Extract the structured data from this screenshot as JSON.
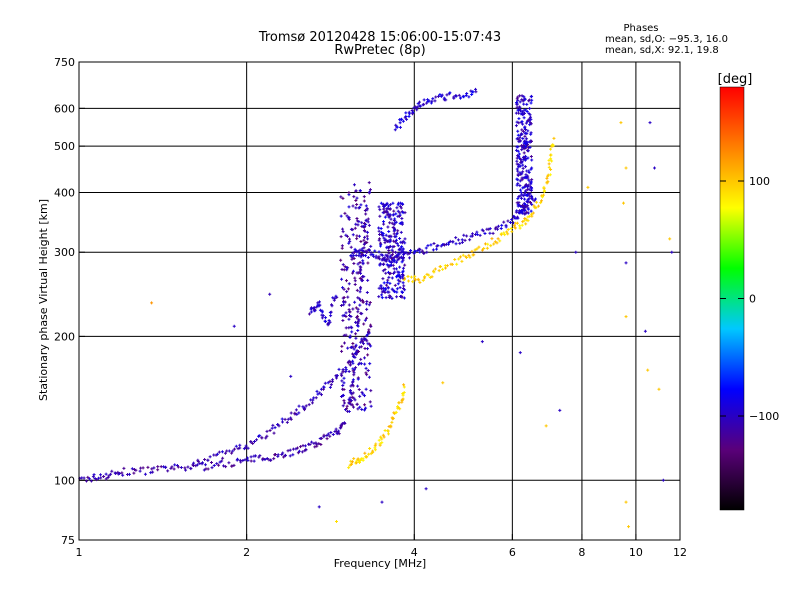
{
  "chart_data": {
    "type": "scatter",
    "title": "Tromsø 20120428 15:06:00-15:07:43",
    "subtitle": "RwPretec (8p)",
    "xlabel": "Frequency [MHz]",
    "ylabel": "Stationary phase Virtual Height [km]",
    "x_scale": "log",
    "y_scale": "log",
    "xlim": [
      1,
      12
    ],
    "ylim": [
      75,
      750
    ],
    "x_ticks": [
      1,
      2,
      4,
      6,
      8,
      10,
      12
    ],
    "x_tick_labels": [
      "1",
      "2",
      "4",
      "6",
      "8",
      "10",
      "12"
    ],
    "y_ticks": [
      75,
      100,
      200,
      300,
      400,
      500,
      600,
      750
    ],
    "y_tick_labels": [
      "75",
      "100",
      "200",
      "300",
      "400",
      "500",
      "600",
      "750"
    ],
    "grid": true,
    "phase_info": {
      "title": "Phases",
      "line_o": "mean, sd,O: −95.3, 16.0",
      "line_x": "mean, sd,X:  92.1, 19.8"
    },
    "colorbar": {
      "label": "[deg]",
      "ticks": [
        100,
        0,
        -100
      ],
      "tick_labels": [
        "100",
        "0",
        "−100"
      ],
      "range": [
        -180,
        180
      ],
      "colors": [
        "#000000",
        "#5a007a",
        "#0000ff",
        "#00c8ff",
        "#00ff00",
        "#ffff00",
        "#ff8000",
        "#ff0000"
      ]
    },
    "traces": [
      {
        "name": "o-low",
        "phase": -110,
        "points": [
          [
            1.0,
            100
          ],
          [
            1.1,
            102
          ],
          [
            1.2,
            104
          ],
          [
            1.35,
            105
          ],
          [
            1.5,
            106
          ],
          [
            1.7,
            107
          ],
          [
            1.9,
            109
          ],
          [
            2.1,
            111
          ],
          [
            2.3,
            113
          ],
          [
            2.5,
            116
          ],
          [
            2.7,
            120
          ],
          [
            2.9,
            126
          ],
          [
            3.0,
            132
          ]
        ]
      },
      {
        "name": "o-F1",
        "phase": -105,
        "points": [
          [
            1.6,
            109
          ],
          [
            1.8,
            113
          ],
          [
            2.0,
            118
          ],
          [
            2.2,
            126
          ],
          [
            2.4,
            136
          ],
          [
            2.6,
            146
          ],
          [
            2.8,
            158
          ],
          [
            3.0,
            172
          ],
          [
            3.2,
            190
          ],
          [
            3.35,
            210
          ]
        ]
      },
      {
        "name": "o-F2",
        "phase": -100,
        "points": [
          [
            3.1,
            300
          ],
          [
            3.3,
            300
          ],
          [
            3.5,
            293
          ],
          [
            3.7,
            290
          ],
          [
            3.9,
            296
          ],
          [
            4.2,
            304
          ],
          [
            4.6,
            314
          ],
          [
            5.0,
            322
          ],
          [
            5.5,
            333
          ],
          [
            6.0,
            350
          ],
          [
            6.3,
            370
          ],
          [
            6.6,
            395
          ]
        ]
      },
      {
        "name": "o-top",
        "phase": -95,
        "points": [
          [
            3.7,
            545
          ],
          [
            3.9,
            580
          ],
          [
            4.1,
            615
          ],
          [
            4.4,
            630
          ],
          [
            4.8,
            640
          ],
          [
            5.2,
            648
          ]
        ]
      },
      {
        "name": "x-F2",
        "phase": 95,
        "points": [
          [
            3.8,
            265
          ],
          [
            4.1,
            262
          ],
          [
            4.5,
            278
          ],
          [
            5.0,
            296
          ],
          [
            5.5,
            315
          ],
          [
            6.0,
            335
          ],
          [
            6.4,
            352
          ],
          [
            6.8,
            390
          ],
          [
            7.0,
            445
          ],
          [
            7.1,
            520
          ]
        ]
      },
      {
        "name": "x-low",
        "phase": 95,
        "points": [
          [
            3.05,
            108
          ],
          [
            3.2,
            111
          ],
          [
            3.4,
            117
          ],
          [
            3.6,
            128
          ],
          [
            3.75,
            142
          ],
          [
            3.85,
            158
          ]
        ]
      },
      {
        "name": "o-spread-a",
        "phase": -100,
        "points": [
          [
            2.6,
            225
          ],
          [
            2.7,
            235
          ],
          [
            2.8,
            210
          ],
          [
            2.9,
            250
          ]
        ]
      },
      {
        "name": "o-spread-b",
        "phase": -105,
        "points": [
          [
            3.05,
            140
          ],
          [
            3.1,
            160
          ],
          [
            3.15,
            200
          ],
          [
            3.2,
            260
          ],
          [
            3.25,
            320
          ],
          [
            3.3,
            380
          ]
        ]
      }
    ],
    "columns": [
      {
        "name": "o-column-3.1",
        "phase": -110,
        "x": [
          2.95,
          3.35
        ],
        "y": [
          140,
          420
        ]
      },
      {
        "name": "o-column-3.7",
        "phase": -100,
        "x": [
          3.45,
          3.85
        ],
        "y": [
          240,
          380
        ]
      },
      {
        "name": "o-column-6.3",
        "phase": -100,
        "x": [
          6.1,
          6.5
        ],
        "y": [
          360,
          640
        ]
      }
    ],
    "scattered": [
      [
        1.35,
        235,
        120
      ],
      [
        1.9,
        210,
        -100
      ],
      [
        2.2,
        245,
        -105
      ],
      [
        2.4,
        165,
        -100
      ],
      [
        2.55,
        118,
        -100
      ],
      [
        2.7,
        88,
        -100
      ],
      [
        2.9,
        82,
        90
      ],
      [
        3.5,
        90,
        -100
      ],
      [
        4.2,
        96,
        -100
      ],
      [
        4.5,
        160,
        100
      ],
      [
        5.3,
        195,
        -100
      ],
      [
        6.2,
        185,
        -100
      ],
      [
        6.9,
        130,
        100
      ],
      [
        7.3,
        140,
        -100
      ],
      [
        7.8,
        300,
        -100
      ],
      [
        8.2,
        410,
        100
      ],
      [
        9.4,
        560,
        100
      ],
      [
        9.6,
        450,
        100
      ],
      [
        9.5,
        380,
        100
      ],
      [
        9.6,
        285,
        -100
      ],
      [
        9.6,
        220,
        100
      ],
      [
        10.4,
        205,
        -100
      ],
      [
        10.5,
        170,
        100
      ],
      [
        11.0,
        155,
        100
      ],
      [
        11.5,
        320,
        100
      ],
      [
        11.6,
        300,
        -100
      ],
      [
        9.6,
        90,
        100
      ],
      [
        9.7,
        80,
        100
      ],
      [
        10.6,
        560,
        -100
      ],
      [
        11.2,
        100,
        -100
      ],
      [
        10.8,
        450,
        -100
      ]
    ]
  }
}
